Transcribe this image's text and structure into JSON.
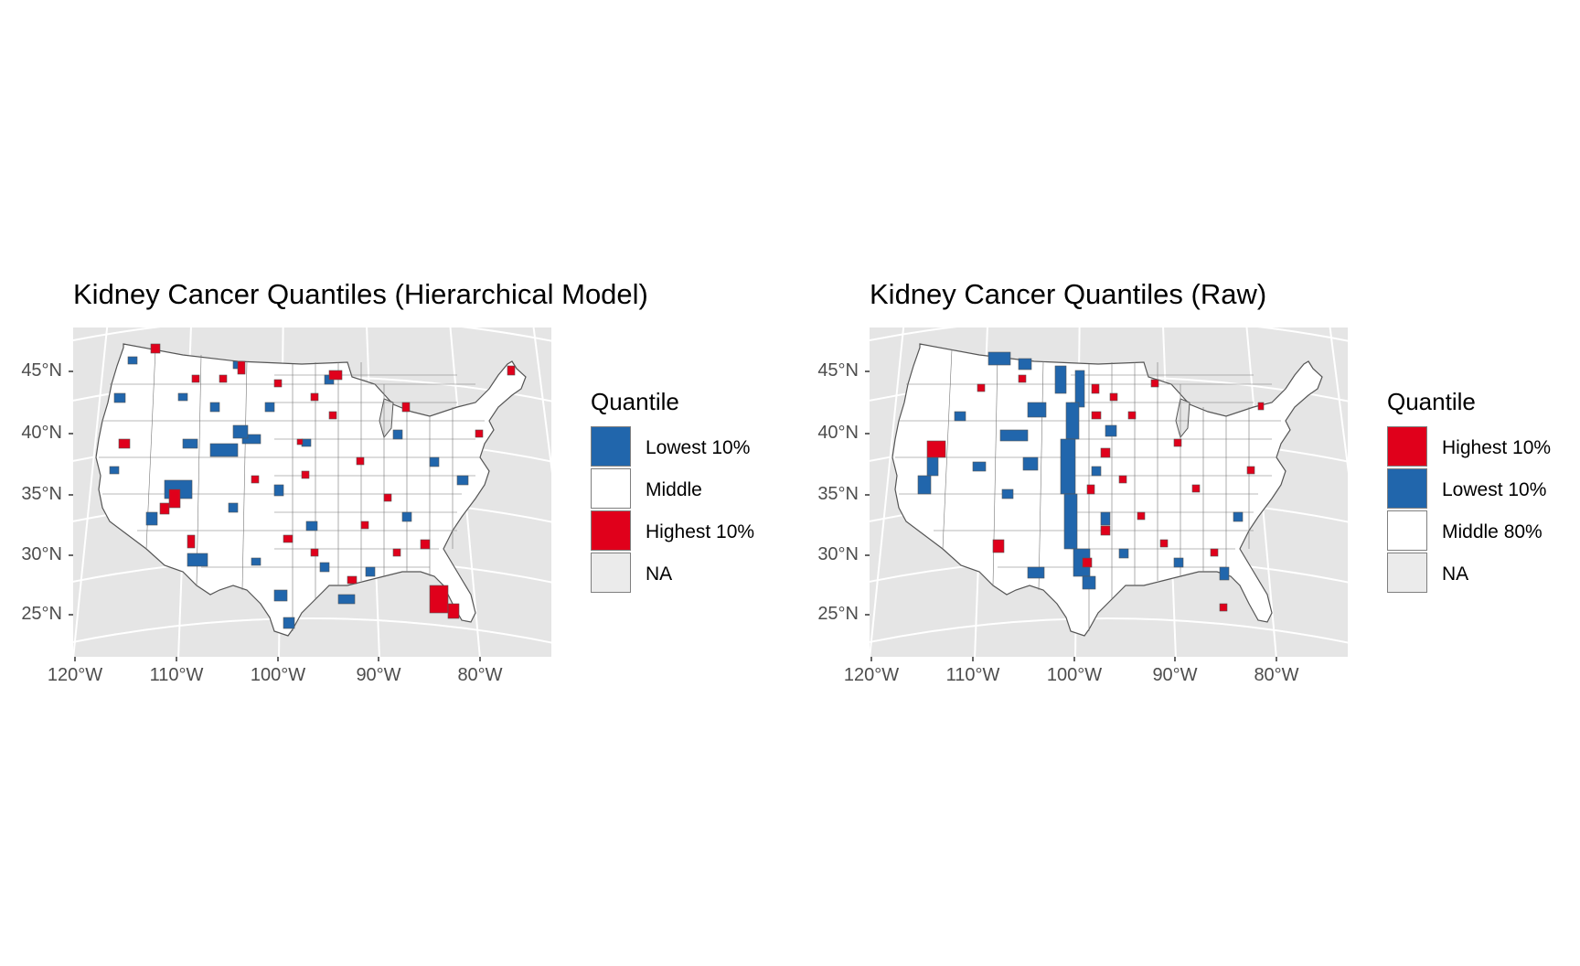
{
  "colors": {
    "panel_bg": "#e5e5e5",
    "grid": "#ffffff",
    "blue": "#2166ac",
    "red": "#e0001b",
    "white": "#ffffff",
    "na": "#ebebeb",
    "border": "#555555"
  },
  "chart_data": [
    {
      "type": "choropleth",
      "title": "Kidney Cancer Quantiles (Hierarchical Model)",
      "y_ticks": [
        "45°N",
        "40°N",
        "35°N",
        "30°N",
        "25°N"
      ],
      "x_ticks": [
        "120°W",
        "110°W",
        "100°W",
        "90°W",
        "80°W"
      ],
      "grid": true,
      "legend": {
        "title": "Quantile",
        "placement": "right",
        "items": [
          {
            "label": "Lowest 10%",
            "color": "#2166ac"
          },
          {
            "label": "Middle",
            "color": "#ffffff"
          },
          {
            "label": "Highest 10%",
            "color": "#e0001b"
          },
          {
            "label": "NA",
            "color": "#ebebeb"
          }
        ]
      }
    },
    {
      "type": "choropleth",
      "title": "Kidney Cancer Quantiles (Raw)",
      "y_ticks": [
        "45°N",
        "40°N",
        "35°N",
        "30°N",
        "25°N"
      ],
      "x_ticks": [
        "120°W",
        "110°W",
        "100°W",
        "90°W",
        "80°W"
      ],
      "grid": true,
      "legend": {
        "title": "Quantile",
        "placement": "right",
        "items": [
          {
            "label": "Highest 10%",
            "color": "#e0001b"
          },
          {
            "label": "Lowest 10%",
            "color": "#2166ac"
          },
          {
            "label": "Middle 80%",
            "color": "#ffffff"
          },
          {
            "label": "NA",
            "color": "#ebebeb"
          }
        ]
      }
    }
  ]
}
